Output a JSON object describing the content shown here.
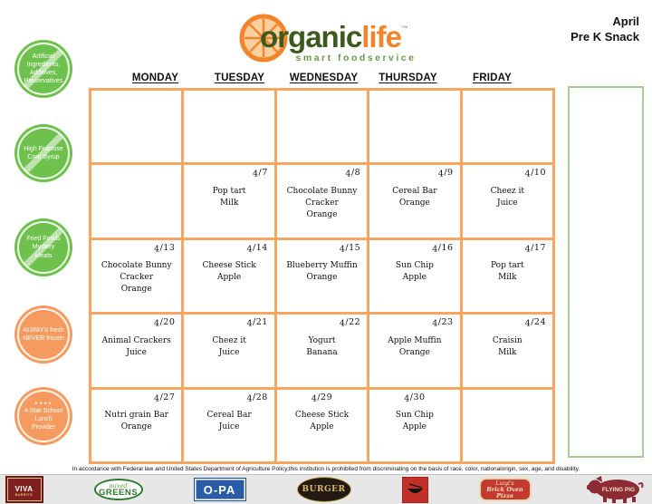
{
  "header": {
    "logo": {
      "word1": "organic",
      "word2": "life",
      "trademark": "™",
      "tagline": "smart foodservice"
    },
    "month": "April",
    "menu_name": "Pre K Snack"
  },
  "colors": {
    "grid_orange": "#F7A661",
    "badge_green": "#6EC14D",
    "badge_orange": "#F69B5F",
    "logo_orange": "#F2842B",
    "logo_dark_green": "#3D5A1E",
    "tagline_green": "#6A9A49",
    "side_panel_green": "#A8CD94"
  },
  "badges": [
    {
      "id": "badge-no-artificial-ingredients",
      "style": "green",
      "slash": true,
      "lines": [
        "Artificial",
        "Ingredients,",
        "Additives,",
        "Preservatives"
      ]
    },
    {
      "id": "badge-no-high-fructose-corn-syrup",
      "style": "green",
      "slash": true,
      "lines": [
        "High Fructose",
        "Corn Syrup"
      ]
    },
    {
      "id": "badge-no-fried-foods-mystery-meats",
      "style": "green",
      "slash": true,
      "lines": [
        "Fried Foods",
        "Mystery",
        "Meats"
      ]
    },
    {
      "id": "badge-always-fresh-never-frozen",
      "style": "orange",
      "slash": false,
      "lines": [
        "ALWAYS fresh",
        "NEVER frozen"
      ]
    },
    {
      "id": "badge-4-star-school-lunch-provider",
      "style": "orange",
      "slash": false,
      "stars": "★★★★",
      "lines": [
        "4-Star School",
        "Lunch",
        "Provider"
      ]
    }
  ],
  "calendar": {
    "day_headers": [
      "MONDAY",
      "TUESDAY",
      "WEDNESDAY",
      "THURSDAY",
      "FRIDAY"
    ],
    "rows": [
      [
        {
          "date": "",
          "items": []
        },
        {
          "date": "",
          "items": []
        },
        {
          "date": "",
          "items": []
        },
        {
          "date": "",
          "items": []
        },
        {
          "date": "",
          "items": []
        }
      ],
      [
        {
          "date": "",
          "items": []
        },
        {
          "date": "4/7",
          "items": [
            "Pop tart",
            "Milk"
          ]
        },
        {
          "date": "4/8",
          "items": [
            "Chocolate Bunny",
            "Cracker",
            "Orange"
          ]
        },
        {
          "date": "4/9",
          "items": [
            "Cereal Bar",
            "Orange"
          ]
        },
        {
          "date": "4/10",
          "items": [
            "Cheez it",
            "Juice"
          ]
        }
      ],
      [
        {
          "date": "4/13",
          "items": [
            "Chocolate Bunny",
            "Cracker",
            "Orange"
          ]
        },
        {
          "date": "4/14",
          "items": [
            "Cheese Stick",
            "Apple"
          ]
        },
        {
          "date": "4/15",
          "items": [
            "Blueberry Muffin",
            "Orange"
          ]
        },
        {
          "date": "4/16",
          "items": [
            "Sun Chip",
            "Apple"
          ]
        },
        {
          "date": "4/17",
          "items": [
            "Pop tart",
            "Milk"
          ]
        }
      ],
      [
        {
          "date": "4/20",
          "items": [
            "Animal Crackers",
            "Juice"
          ]
        },
        {
          "date": "4/21",
          "items": [
            "Cheez it",
            "Juice"
          ]
        },
        {
          "date": "4/22",
          "items": [
            "Yogurt",
            "Banana"
          ]
        },
        {
          "date": "4/23",
          "items": [
            "Apple Muffin",
            "Orange"
          ]
        },
        {
          "date": "4/24",
          "items": [
            "Craisin",
            "Milk"
          ]
        }
      ],
      [
        {
          "date": "4/27",
          "items": [
            "Nutri grain Bar",
            "Orange"
          ]
        },
        {
          "date": "4/28",
          "items": [
            "Cereal Bar",
            "Juice"
          ]
        },
        {
          "date": "4/29",
          "date_align": "center",
          "items": [
            "Cheese Stick",
            "Apple"
          ]
        },
        {
          "date": "4/30",
          "date_align": "center",
          "items": [
            "Sun Chip",
            "Apple"
          ]
        },
        {
          "date": "",
          "items": []
        }
      ]
    ]
  },
  "footer": {
    "disclaimer": "In accordance with Federal law and United States Department of Agriculture Policy,this institution is prohibited from discriminating on the basis of race, color, nationalorigin, sex, age, and disability.",
    "logos": [
      {
        "name": "viva-burrito",
        "line1": "VIVA",
        "line2": "BURRITO"
      },
      {
        "name": "mixed-greens",
        "line1": "mixed",
        "line2": "GREENS"
      },
      {
        "name": "o-pa",
        "line1": "O-PA"
      },
      {
        "name": "burger",
        "line1": "BURGER"
      },
      {
        "name": "quick-wok"
      },
      {
        "name": "luigis-brick-oven-pizza",
        "line1": "Luigi's",
        "line2": "Brick Oven Pizza"
      },
      {
        "name": "flying-pig",
        "line1": "FLYING PIG"
      }
    ]
  }
}
